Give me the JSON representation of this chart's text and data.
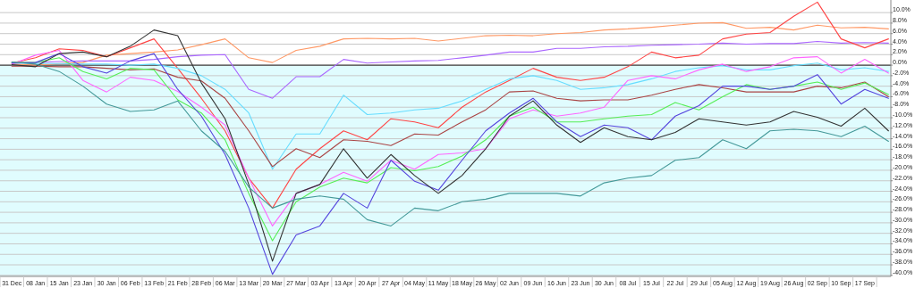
{
  "chart_data": {
    "type": "line",
    "ylim": [
      -40.2,
      12.4
    ],
    "categories": [
      "31 Dec",
      "08 Jan",
      "15 Jan",
      "23 Jan",
      "30 Jan",
      "06 Feb",
      "13 Feb",
      "21 Feb",
      "28 Feb",
      "06 Mar",
      "13 Mar",
      "20 Mar",
      "27 Mar",
      "03 Apr",
      "13 Apr",
      "20 Apr",
      "27 Apr",
      "04 May",
      "11 May",
      "18 May",
      "26 May",
      "02 Jun",
      "09 Jun",
      "16 Jun",
      "23 Jun",
      "30 Jun",
      "08 Jul",
      "15 Jul",
      "22 Jul",
      "29 Jul",
      "05 Aug",
      "12 Aug",
      "19 Aug",
      "26 Aug",
      "02 Sep",
      "10 Sep",
      "17 Sep",
      null
    ],
    "yticks": [
      {
        "value": -40,
        "label": "-40.0%"
      },
      {
        "value": -38,
        "label": "-38.0%"
      },
      {
        "value": -36,
        "label": "-36.0%"
      },
      {
        "value": -34,
        "label": "-34.0%"
      },
      {
        "value": -32,
        "label": "-32.0%"
      },
      {
        "value": -30,
        "label": "-30.0%"
      },
      {
        "value": -28,
        "label": "-28.0%"
      },
      {
        "value": -26,
        "label": "-26.0%"
      },
      {
        "value": -24,
        "label": "-24.0%"
      },
      {
        "value": -22,
        "label": "-22.0%"
      },
      {
        "value": -20,
        "label": "-20.0%"
      },
      {
        "value": -18,
        "label": "-18.0%"
      },
      {
        "value": -16,
        "label": "-16.0%"
      },
      {
        "value": -14,
        "label": "-14.0%"
      },
      {
        "value": -12,
        "label": "-12.0%"
      },
      {
        "value": -10,
        "label": "-10.0%"
      },
      {
        "value": -8,
        "label": "-8.0%"
      },
      {
        "value": -6,
        "label": "-6.0%"
      },
      {
        "value": -4,
        "label": "-4.0%"
      },
      {
        "value": -2,
        "label": "-2.0%"
      },
      {
        "value": 0,
        "label": "0.0%"
      },
      {
        "value": 2,
        "label": "2.0%"
      },
      {
        "value": 4,
        "label": "4.0%"
      },
      {
        "value": 6,
        "label": "6.0%"
      },
      {
        "value": 8,
        "label": "8.0%"
      },
      {
        "value": 10,
        "label": "10.0%"
      }
    ],
    "grid": "y",
    "bands": [
      {
        "axis": "y",
        "from": -40.2,
        "to": 0,
        "color": "#e0fcfe"
      }
    ],
    "ref_lines": [
      {
        "axis": "y",
        "value": 0,
        "color": "#444444"
      }
    ],
    "series": [
      {
        "color": "#ff9966",
        "values": [
          0.2,
          0,
          0.3,
          0.5,
          1.9,
          2.2,
          2.5,
          2.9,
          3.9,
          5.0,
          1.4,
          0.5,
          2.8,
          3.6,
          5.0,
          5.1,
          5.0,
          5.1,
          4.6,
          5.1,
          5.6,
          5.7,
          5.6,
          6.0,
          6.2,
          6.7,
          6.9,
          7.2,
          7.6,
          8.0,
          8.1,
          7.0,
          7.2,
          6.7,
          7.6,
          7.1,
          7.2,
          6.9
        ]
      },
      {
        "color": "#aa66ff",
        "values": [
          0.6,
          0.5,
          0.7,
          0.8,
          0.8,
          0.8,
          1.1,
          1.6,
          1.9,
          2.0,
          -4.6,
          -6.3,
          -2.2,
          -2.2,
          1.1,
          0.4,
          0.6,
          0.8,
          0.9,
          1.4,
          1.9,
          2.5,
          2.5,
          3.2,
          3.2,
          3.5,
          3.6,
          3.8,
          3.9,
          4.0,
          4.2,
          4.0,
          4.1,
          4.1,
          4.5,
          4.2,
          4.3,
          4.2
        ]
      },
      {
        "color": "#ff4444",
        "values": [
          0.4,
          1.4,
          3.1,
          2.8,
          1.6,
          3.3,
          5.0,
          -0.6,
          -6.3,
          -12.5,
          -21.5,
          -27.2,
          -19.8,
          -15.9,
          -12.5,
          -14.2,
          -10.2,
          -10.8,
          -11.9,
          -8.0,
          -5.1,
          -2.9,
          -0.6,
          -2.3,
          -2.9,
          -2.3,
          -0.3,
          2.5,
          1.4,
          1.9,
          5.0,
          5.9,
          6.2,
          9.3,
          12.0,
          5.0,
          3.3,
          5.0
        ]
      },
      {
        "color": "#66ddff",
        "values": [
          0.4,
          0.3,
          0.3,
          0.2,
          0.2,
          0,
          0.2,
          -0.6,
          -2.0,
          -4.6,
          -9.1,
          -19.8,
          -13.1,
          -13.1,
          -5.7,
          -9.4,
          -9.1,
          -8.5,
          -8.2,
          -6.8,
          -4.6,
          -2.6,
          -2.0,
          -2.9,
          -4.6,
          -4.3,
          -3.7,
          -2.6,
          -1.2,
          -0.5,
          -0.1,
          -0.9,
          -0.9,
          -0.1,
          0.4,
          -0.9,
          -0.5,
          -1.2
        ]
      },
      {
        "color": "#aa4444",
        "values": [
          -0.2,
          -0.2,
          -0.3,
          -0.3,
          -0.6,
          -0.9,
          -0.7,
          -2.3,
          -3.0,
          -6.3,
          -12.5,
          -19.3,
          -15.9,
          -17.6,
          -14.2,
          -14.5,
          -15.3,
          -13.1,
          -13.3,
          -10.8,
          -8.5,
          -5.1,
          -4.9,
          -6.3,
          -6.8,
          -6.6,
          -6.6,
          -5.7,
          -4.6,
          -3.7,
          -4.3,
          -5.1,
          -5.1,
          -5.1,
          -4.0,
          -4.3,
          -3.2,
          -6.0
        ]
      },
      {
        "color": "#ff66ff",
        "values": [
          0.2,
          1.9,
          2.8,
          -2.9,
          -5.1,
          -2.3,
          -2.9,
          -5.0,
          -8.0,
          -11.4,
          -21.5,
          -30.6,
          -24.4,
          -22.7,
          -20.4,
          -22.1,
          -18.1,
          -19.8,
          -17.0,
          -16.7,
          -15.9,
          -10.2,
          -8.5,
          -9.7,
          -9.1,
          -8.0,
          -2.9,
          -2.0,
          -2.6,
          -0.9,
          0.2,
          -1.2,
          -0.3,
          1.4,
          1.6,
          -1.5,
          1.1,
          -1.5
        ]
      },
      {
        "color": "#55ee55",
        "values": [
          0.5,
          0.5,
          1.4,
          -1.2,
          -2.6,
          -0.6,
          -0.9,
          -6.6,
          -9.1,
          -14.2,
          -24.4,
          -33.4,
          -26.0,
          -23.2,
          -21.5,
          -22.4,
          -19.5,
          -20.1,
          -19.3,
          -17.3,
          -14.2,
          -9.7,
          -8.0,
          -10.8,
          -10.8,
          -10.2,
          -9.7,
          -9.4,
          -7.1,
          -8.5,
          -6.0,
          -3.7,
          -4.6,
          -4.0,
          -3.2,
          -4.6,
          -3.4,
          -5.6
        ]
      },
      {
        "color": "#5544dd",
        "values": [
          0.4,
          0.5,
          2.2,
          -0.3,
          -1.5,
          0.8,
          2.2,
          -4.6,
          -9.7,
          -17.0,
          -27.2,
          -39.8,
          -32.3,
          -30.6,
          -24.4,
          -27.2,
          -18.1,
          -22.1,
          -23.8,
          -18.1,
          -12.5,
          -9.1,
          -6.3,
          -10.8,
          -13.6,
          -11.4,
          -11.9,
          -14.2,
          -9.7,
          -7.7,
          -4.0,
          -4.0,
          -4.6,
          -4.0,
          -1.8,
          -7.4,
          -4.6,
          -6.3
        ]
      },
      {
        "color": "#333333",
        "values": [
          0.1,
          -0.3,
          2.2,
          2.5,
          1.6,
          3.6,
          6.7,
          5.6,
          -3.4,
          -10.2,
          -22.7,
          -37.3,
          -24.4,
          -22.7,
          -15.9,
          -21.5,
          -17.0,
          -21.0,
          -24.4,
          -21.0,
          -15.9,
          -9.7,
          -6.8,
          -11.4,
          -14.7,
          -11.9,
          -13.6,
          -14.2,
          -12.8,
          -10.2,
          -10.8,
          -11.4,
          -10.8,
          -8.8,
          -9.9,
          -11.6,
          -8.2,
          -12.5
        ]
      },
      {
        "color": "#449999",
        "values": [
          0.6,
          0.2,
          -1.2,
          -4.0,
          -7.4,
          -8.8,
          -8.5,
          -6.8,
          -12.5,
          -16.4,
          -23.2,
          -27.2,
          -25.5,
          -24.9,
          -25.5,
          -29.4,
          -30.6,
          -27.2,
          -27.7,
          -26.0,
          -25.5,
          -24.4,
          -24.4,
          -24.4,
          -24.9,
          -22.4,
          -21.5,
          -21.0,
          -18.1,
          -17.6,
          -14.2,
          -15.9,
          -12.5,
          -12.2,
          -12.5,
          -13.6,
          -11.6,
          -14.5
        ]
      }
    ]
  }
}
